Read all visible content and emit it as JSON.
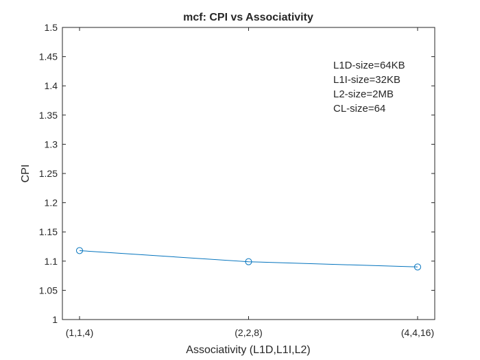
{
  "chart_data": {
    "type": "line",
    "title": "mcf: CPI vs Associativity",
    "xlabel": "Associativity (L1D,L1I,L2)",
    "ylabel": "CPI",
    "categories": [
      "(1,1,4)",
      "(2,2,8)",
      "(4,4,16)"
    ],
    "series": [
      {
        "values": [
          1.118,
          1.099,
          1.09
        ],
        "color": "#0072BD",
        "marker": "circle"
      }
    ],
    "ylim": [
      1,
      1.5
    ],
    "yticks": [
      "1",
      "1.05",
      "1.1",
      "1.15",
      "1.2",
      "1.25",
      "1.3",
      "1.35",
      "1.4",
      "1.45",
      "1.5"
    ],
    "grid": false,
    "annotation": [
      "L1D-size=64KB",
      "L1I-size=32KB",
      "L2-size=2MB",
      "CL-size=64"
    ]
  }
}
